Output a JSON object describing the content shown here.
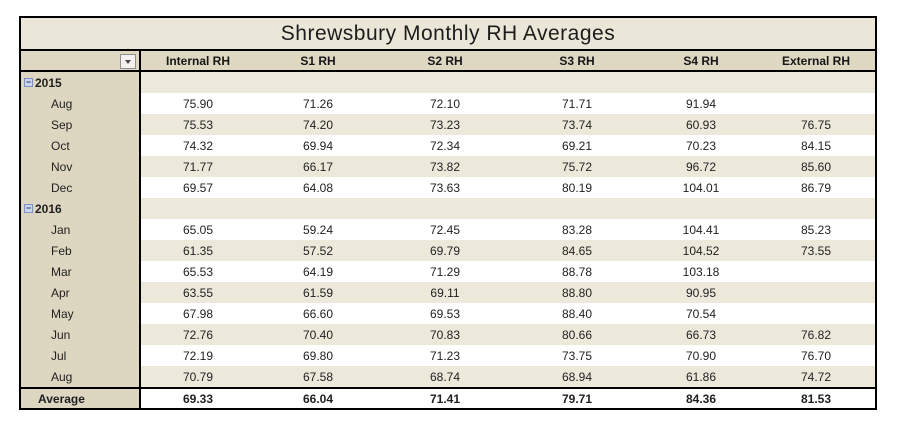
{
  "table": {
    "title": "Shrewsbury Monthly RH Averages",
    "columns": [
      "Internal RH",
      "S1 RH",
      "S2 RH",
      "S3 RH",
      "S4 RH",
      "External RH"
    ],
    "icons": {
      "filter_dropdown": "triangle-down",
      "collapse_glyph": "−"
    },
    "colors": {
      "title_band": "#ebe7d8",
      "header_band": "#ded8c2",
      "label_column": "#ddd6c1",
      "row_band": "#ece9db",
      "row_plain": "#ffffff",
      "border": "#000000"
    },
    "rows": [
      {
        "type": "year",
        "label": "2015",
        "values": [
          "",
          "",
          "",
          "",
          "",
          ""
        ]
      },
      {
        "type": "month",
        "label": "Aug",
        "values": [
          "75.90",
          "71.26",
          "72.10",
          "71.71",
          "91.94",
          ""
        ]
      },
      {
        "type": "month",
        "label": "Sep",
        "values": [
          "75.53",
          "74.20",
          "73.23",
          "73.74",
          "60.93",
          "76.75"
        ]
      },
      {
        "type": "month",
        "label": "Oct",
        "values": [
          "74.32",
          "69.94",
          "72.34",
          "69.21",
          "70.23",
          "84.15"
        ]
      },
      {
        "type": "month",
        "label": "Nov",
        "values": [
          "71.77",
          "66.17",
          "73.82",
          "75.72",
          "96.72",
          "85.60"
        ]
      },
      {
        "type": "month",
        "label": "Dec",
        "values": [
          "69.57",
          "64.08",
          "73.63",
          "80.19",
          "104.01",
          "86.79"
        ]
      },
      {
        "type": "year",
        "label": "2016",
        "values": [
          "",
          "",
          "",
          "",
          "",
          ""
        ]
      },
      {
        "type": "month",
        "label": "Jan",
        "values": [
          "65.05",
          "59.24",
          "72.45",
          "83.28",
          "104.41",
          "85.23"
        ]
      },
      {
        "type": "month",
        "label": "Feb",
        "values": [
          "61.35",
          "57.52",
          "69.79",
          "84.65",
          "104.52",
          "73.55"
        ]
      },
      {
        "type": "month",
        "label": "Mar",
        "values": [
          "65.53",
          "64.19",
          "71.29",
          "88.78",
          "103.18",
          ""
        ]
      },
      {
        "type": "month",
        "label": "Apr",
        "values": [
          "63.55",
          "61.59",
          "69.11",
          "88.80",
          "90.95",
          ""
        ]
      },
      {
        "type": "month",
        "label": "May",
        "values": [
          "67.98",
          "66.60",
          "69.53",
          "88.40",
          "70.54",
          ""
        ]
      },
      {
        "type": "month",
        "label": "Jun",
        "values": [
          "72.76",
          "70.40",
          "70.83",
          "80.66",
          "66.73",
          "76.82"
        ]
      },
      {
        "type": "month",
        "label": "Jul",
        "values": [
          "72.19",
          "69.80",
          "71.23",
          "73.75",
          "70.90",
          "76.70"
        ]
      },
      {
        "type": "month",
        "label": "Aug",
        "values": [
          "70.79",
          "67.58",
          "68.74",
          "68.94",
          "61.86",
          "74.72"
        ]
      },
      {
        "type": "average",
        "label": "Average",
        "values": [
          "69.33",
          "66.04",
          "71.41",
          "79.71",
          "84.36",
          "81.53"
        ]
      }
    ]
  }
}
